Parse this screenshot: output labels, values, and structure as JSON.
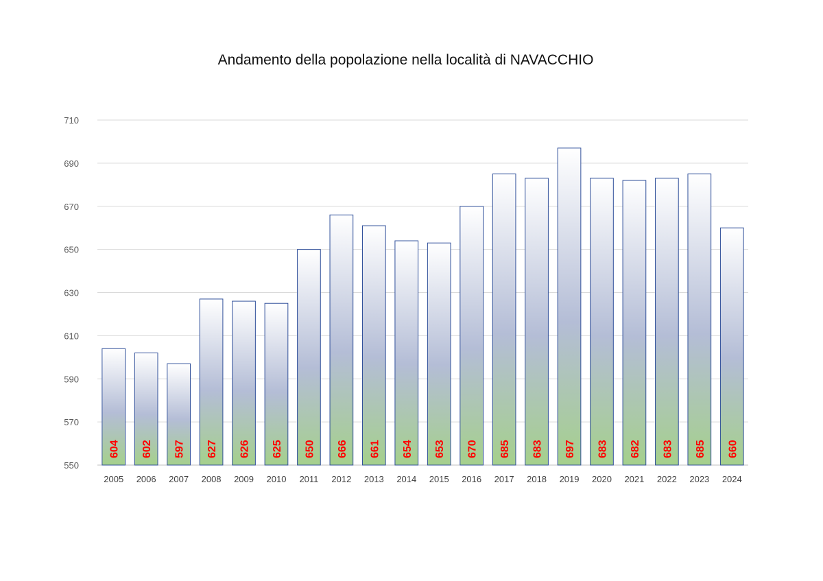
{
  "chart_data": {
    "type": "bar",
    "title": "Andamento della popolazione nella località di NAVACCHIO",
    "xlabel": "",
    "ylabel": "",
    "ylim": [
      550,
      710
    ],
    "yticks": [
      550,
      570,
      590,
      610,
      630,
      650,
      670,
      690,
      710
    ],
    "grid": true,
    "categories": [
      "2005",
      "2006",
      "2007",
      "2008",
      "2009",
      "2010",
      "2011",
      "2012",
      "2013",
      "2014",
      "2015",
      "2016",
      "2017",
      "2018",
      "2019",
      "2020",
      "2021",
      "2022",
      "2023",
      "2024"
    ],
    "values": [
      604,
      602,
      597,
      627,
      626,
      625,
      650,
      666,
      661,
      654,
      653,
      670,
      685,
      683,
      697,
      683,
      682,
      683,
      685,
      660
    ],
    "data_labels": true,
    "colors": {
      "bar_top": "#ffffff",
      "bar_middle": "#b4bdd6",
      "bar_bottom": "#a5d08c",
      "bar_border": "#2f4f9a",
      "label": "#ff0000"
    }
  }
}
